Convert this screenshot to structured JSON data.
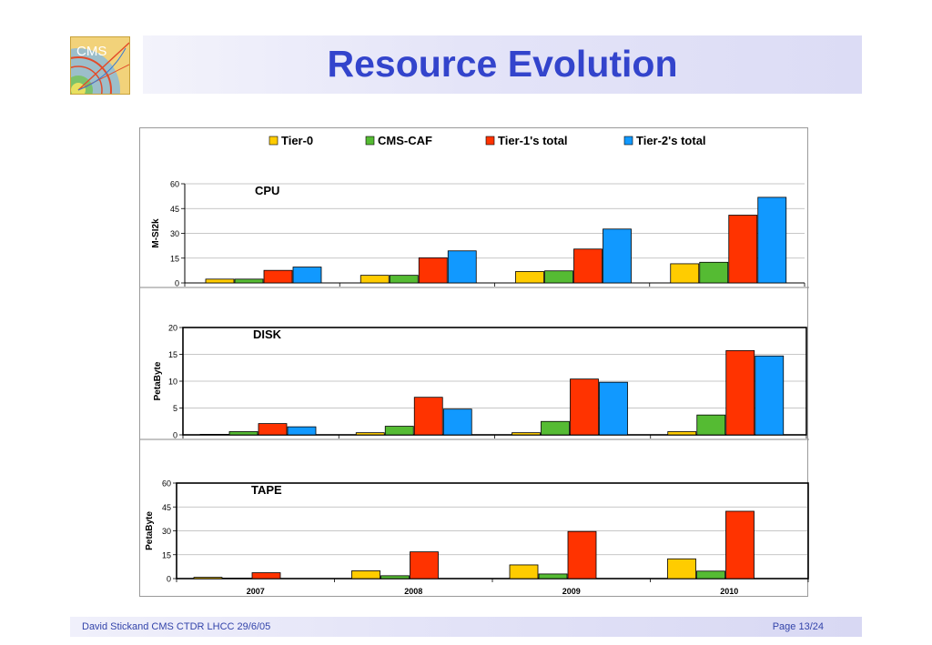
{
  "title": "Resource Evolution",
  "footer": {
    "left": "David Stickand CMS CTDR LHCC 29/6/05",
    "right": "Page 13/24"
  },
  "logo": {
    "text": "CMS",
    "icon": "cms-logo-icon"
  },
  "colors": {
    "title": "#3344cc",
    "tier0": "#ffcc00",
    "cmscaf": "#55bb33",
    "tier1": "#ff3300",
    "tier2": "#1199ff"
  },
  "chart_data": {
    "type": "bar",
    "categories": [
      "2007",
      "2008",
      "2009",
      "2010"
    ],
    "legend": [
      {
        "name": "Tier-0",
        "color": "#ffcc00"
      },
      {
        "name": "CMS-CAF",
        "color": "#55bb33"
      },
      {
        "name": "Tier-1's total",
        "color": "#ff3300"
      },
      {
        "name": "Tier-2's total",
        "color": "#1199ff"
      }
    ],
    "legend_position": "top",
    "panels": [
      {
        "title": "CPU",
        "ylabel": "M-SI2k",
        "ylim": [
          0,
          60
        ],
        "yticks": [
          "0",
          "15",
          "30",
          "45",
          "60"
        ],
        "series": [
          {
            "name": "Tier-0",
            "values": [
              2.3,
              4.6,
              6.9,
              11.6
            ]
          },
          {
            "name": "CMS-CAF",
            "values": [
              2.3,
              4.6,
              7.3,
              12.5
            ]
          },
          {
            "name": "Tier-1's total",
            "values": [
              7.6,
              15.2,
              20.5,
              41
            ]
          },
          {
            "name": "Tier-2's total",
            "values": [
              9.6,
              19.4,
              32.6,
              51.8
            ]
          }
        ]
      },
      {
        "title": "DISK",
        "ylabel": "PetaByte",
        "ylim": [
          0,
          20
        ],
        "yticks": [
          "0",
          "5",
          "10",
          "15",
          "20"
        ],
        "series": [
          {
            "name": "Tier-0",
            "values": [
              0.1,
              0.4,
              0.4,
              0.6
            ]
          },
          {
            "name": "CMS-CAF",
            "values": [
              0.6,
              1.6,
              2.5,
              3.7
            ]
          },
          {
            "name": "Tier-1's total",
            "values": [
              2.1,
              7.0,
              10.4,
              15.7
            ]
          },
          {
            "name": "Tier-2's total",
            "values": [
              1.5,
              4.8,
              9.8,
              14.7
            ]
          }
        ]
      },
      {
        "title": "TAPE",
        "ylabel": "PetaByte",
        "ylim": [
          0,
          60
        ],
        "yticks": [
          "0",
          "15",
          "30",
          "45",
          "60"
        ],
        "series": [
          {
            "name": "Tier-0",
            "values": [
              0.8,
              4.9,
              8.6,
              12.4
            ]
          },
          {
            "name": "CMS-CAF",
            "values": [
              0.3,
              1.8,
              2.9,
              4.7
            ]
          },
          {
            "name": "Tier-1's total",
            "values": [
              3.7,
              16.8,
              29.6,
              42.3
            ]
          }
        ]
      }
    ]
  }
}
